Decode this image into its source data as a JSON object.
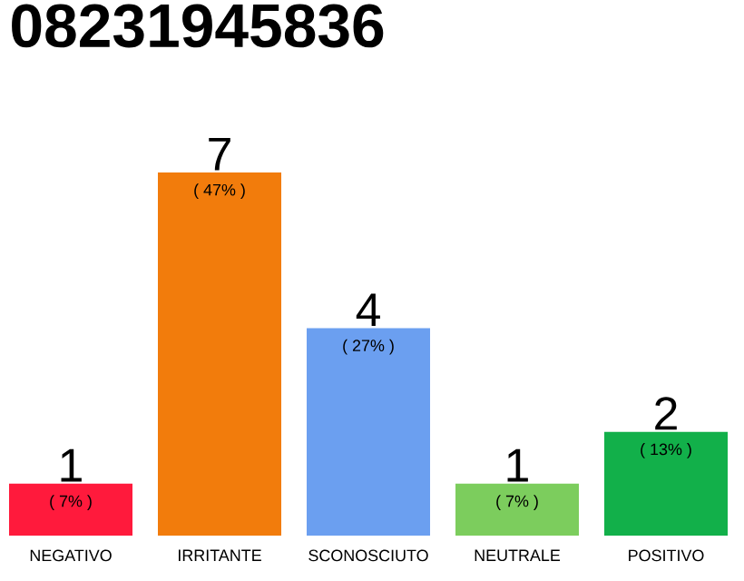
{
  "chart_data": {
    "type": "bar",
    "title": "08231945836",
    "categories": [
      "NEGATIVO",
      "IRRITANTE",
      "SCONOSCIUTO",
      "NEUTRALE",
      "POSITIVO"
    ],
    "values": [
      1,
      7,
      4,
      1,
      2
    ],
    "colors": [
      "#ff1a3c",
      "#f27c0c",
      "#6b9ff0",
      "#7ccd5d",
      "#12b04a"
    ],
    "data_labels": true,
    "annotations": [
      {
        "text": "( 7% )",
        "x": "NEGATIVO",
        "y": 1
      },
      {
        "text": "( 47% )",
        "x": "IRRITANTE",
        "y": 7
      },
      {
        "text": "( 27% )",
        "x": "SCONOSCIUTO",
        "y": 4
      },
      {
        "text": "( 7% )",
        "x": "NEUTRALE",
        "y": 1
      },
      {
        "text": "( 13% )",
        "x": "POSITIVO",
        "y": 2
      }
    ]
  }
}
